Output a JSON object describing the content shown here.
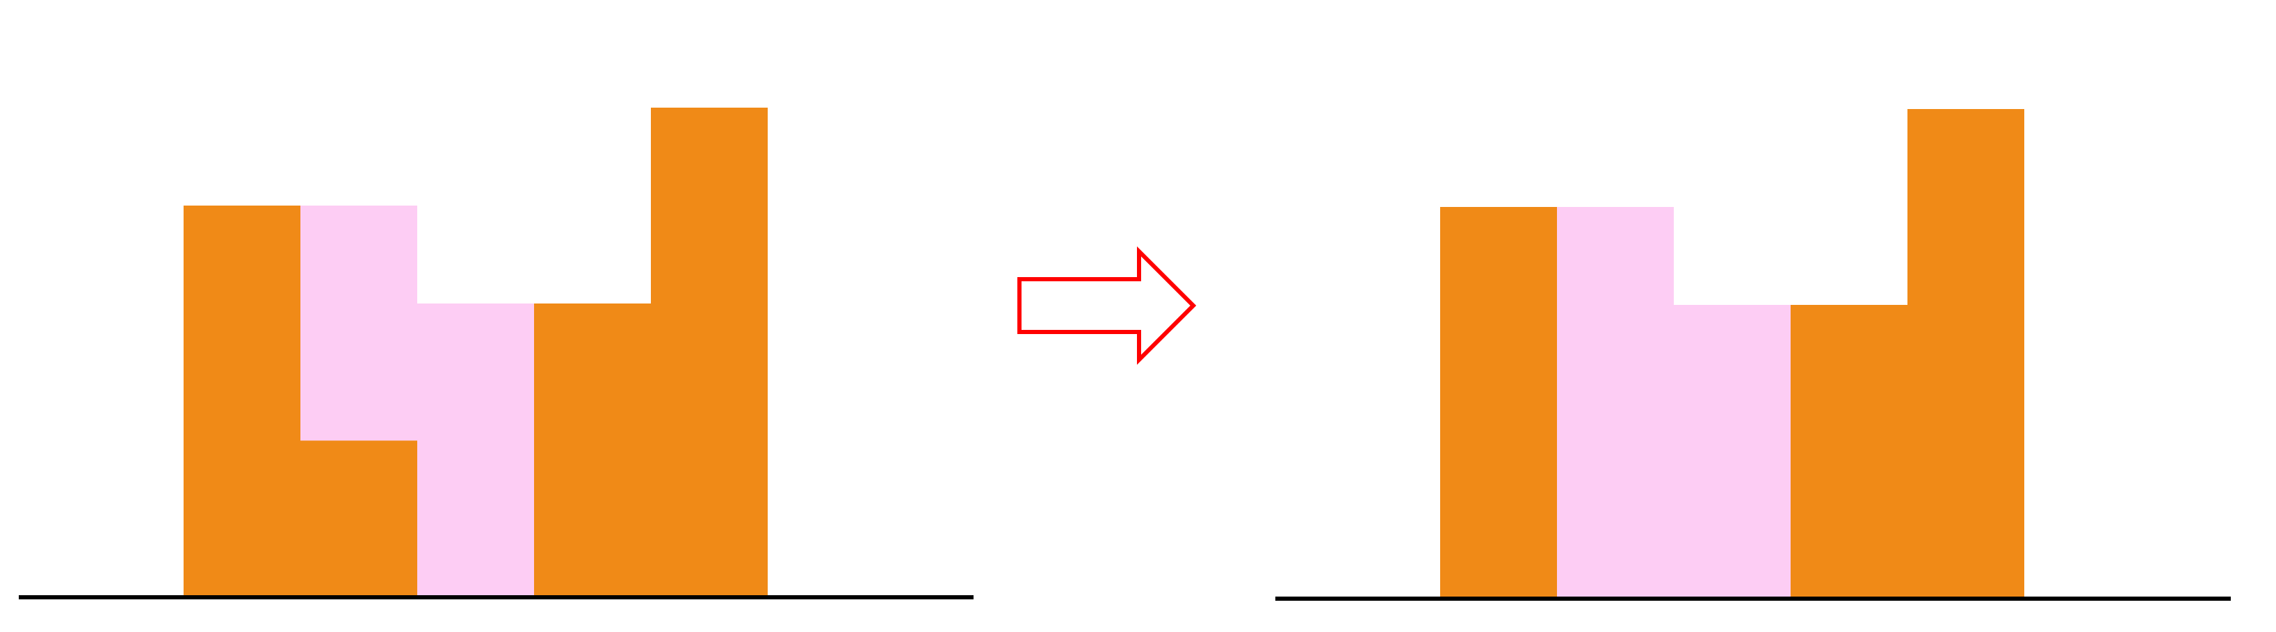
{
  "colors": {
    "bar": "#F08A17",
    "water": "#FDCDF4",
    "ground": "#000000",
    "arrow_stroke": "#FF0000",
    "arrow_fill": "#FFFFFF"
  },
  "diagram": {
    "left_panel": {
      "bar_heights": [
        4,
        1.6,
        0,
        3,
        5
      ],
      "water_levels": [
        4,
        4,
        3,
        3,
        5
      ]
    },
    "right_panel": {
      "bar_heights": [
        4,
        0,
        0,
        3,
        5
      ],
      "water_levels": [
        4,
        4,
        3,
        3,
        5
      ]
    },
    "arrow": {
      "direction": "right"
    }
  }
}
